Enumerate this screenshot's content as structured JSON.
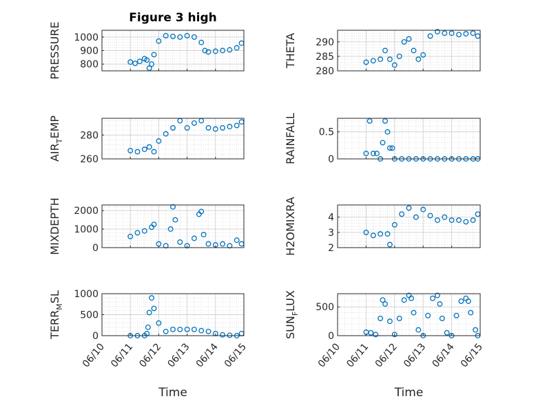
{
  "chart_data": [
    {
      "type": "scatter",
      "title": "Figure 3 high",
      "ylabel": "PRESSURE",
      "xlabel": "",
      "ylim": [
        750,
        1050
      ],
      "yticks": [
        800,
        900,
        1000
      ],
      "show_xticklabels": false,
      "x": [
        "06/11 00:00",
        "06/11 04:00",
        "06/11 08:00",
        "06/11 12:00",
        "06/11 14:00",
        "06/11 16:00",
        "06/11 18:00",
        "06/11 20:00",
        "06/12 00:00",
        "06/12 06:00",
        "06/12 12:00",
        "06/12 18:00",
        "06/13 00:00",
        "06/13 06:00",
        "06/13 12:00",
        "06/13 15:00",
        "06/13 18:00",
        "06/14 00:00",
        "06/14 06:00",
        "06/14 12:00",
        "06/14 18:00",
        "06/14 22:00"
      ],
      "y": [
        815,
        805,
        820,
        840,
        830,
        770,
        800,
        870,
        970,
        1010,
        1005,
        1000,
        1010,
        1000,
        960,
        900,
        890,
        895,
        900,
        905,
        920,
        955
      ]
    },
    {
      "type": "scatter",
      "title": "",
      "ylabel": "THETA",
      "xlabel": "",
      "ylim": [
        280,
        294
      ],
      "yticks": [
        280,
        285,
        290
      ],
      "show_xticklabels": false,
      "x": [
        "06/11 00:00",
        "06/11 06:00",
        "06/11 12:00",
        "06/11 16:00",
        "06/11 20:00",
        "06/12 00:00",
        "06/12 04:00",
        "06/12 08:00",
        "06/12 12:00",
        "06/12 16:00",
        "06/12 20:00",
        "06/13 00:00",
        "06/13 06:00",
        "06/13 12:00",
        "06/13 18:00",
        "06/14 00:00",
        "06/14 06:00",
        "06/14 12:00",
        "06/14 18:00",
        "06/14 22:00"
      ],
      "y": [
        283,
        283.5,
        284,
        287,
        284,
        282,
        285,
        290,
        291,
        287,
        284,
        285.5,
        292,
        293.5,
        293,
        293,
        292.5,
        292.8,
        293,
        292
      ]
    },
    {
      "type": "scatter",
      "title": "",
      "ylabel": "AIR_TEMP",
      "xlabel": "",
      "ylim": [
        260,
        294
      ],
      "yticks": [
        260,
        280
      ],
      "show_xticklabels": false,
      "x": [
        "06/11 00:00",
        "06/11 06:00",
        "06/11 12:00",
        "06/11 16:00",
        "06/11 20:00",
        "06/12 00:00",
        "06/12 06:00",
        "06/12 12:00",
        "06/12 18:00",
        "06/13 00:00",
        "06/13 06:00",
        "06/13 12:00",
        "06/13 18:00",
        "06/14 00:00",
        "06/14 06:00",
        "06/14 12:00",
        "06/14 18:00",
        "06/14 22:00"
      ],
      "y": [
        267,
        266,
        268,
        270,
        266,
        275,
        281,
        286,
        292,
        286,
        290,
        292,
        286,
        285,
        286,
        287,
        288,
        291
      ]
    },
    {
      "type": "scatter",
      "title": "",
      "ylabel": "RAINFALL",
      "xlabel": "",
      "ylim": [
        0,
        0.75
      ],
      "yticks": [
        0,
        0.5
      ],
      "show_xticklabels": false,
      "x": [
        "06/11 00:00",
        "06/11 03:00",
        "06/11 06:00",
        "06/11 09:00",
        "06/11 12:00",
        "06/11 14:00",
        "06/11 16:00",
        "06/11 18:00",
        "06/11 20:00",
        "06/11 22:00",
        "06/12 00:00",
        "06/12 06:00",
        "06/12 12:00",
        "06/12 18:00",
        "06/13 00:00",
        "06/13 06:00",
        "06/13 12:00",
        "06/13 18:00",
        "06/14 00:00",
        "06/14 06:00",
        "06/14 12:00",
        "06/14 18:00",
        "06/14 22:00"
      ],
      "y": [
        0.1,
        0.7,
        0.1,
        0.1,
        0,
        0.3,
        0.7,
        0.5,
        0.2,
        0.2,
        0,
        0,
        0,
        0,
        0,
        0,
        0,
        0,
        0,
        0,
        0,
        0,
        0
      ]
    },
    {
      "type": "scatter",
      "title": "",
      "ylabel": "MIXDEPTH",
      "xlabel": "",
      "ylim": [
        0,
        2300
      ],
      "yticks": [
        0,
        1000,
        2000
      ],
      "show_xticklabels": false,
      "x": [
        "06/11 00:00",
        "06/11 06:00",
        "06/11 12:00",
        "06/11 18:00",
        "06/11 20:00",
        "06/12 00:00",
        "06/12 06:00",
        "06/12 10:00",
        "06/12 12:00",
        "06/12 14:00",
        "06/12 18:00",
        "06/13 00:00",
        "06/13 06:00",
        "06/13 10:00",
        "06/13 12:00",
        "06/13 14:00",
        "06/13 18:00",
        "06/14 00:00",
        "06/14 06:00",
        "06/14 12:00",
        "06/14 18:00",
        "06/14 22:00"
      ],
      "y": [
        600,
        800,
        900,
        1100,
        1250,
        200,
        100,
        1000,
        2200,
        1500,
        300,
        100,
        500,
        1800,
        1950,
        700,
        200,
        150,
        200,
        100,
        400,
        200
      ]
    },
    {
      "type": "scatter",
      "title": "",
      "ylabel": "H2OMIXRA",
      "xlabel": "",
      "ylim": [
        2,
        4.8
      ],
      "yticks": [
        2,
        3,
        4
      ],
      "show_xticklabels": false,
      "x": [
        "06/11 00:00",
        "06/11 06:00",
        "06/11 12:00",
        "06/11 18:00",
        "06/11 20:00",
        "06/12 00:00",
        "06/12 06:00",
        "06/12 12:00",
        "06/12 18:00",
        "06/13 00:00",
        "06/13 06:00",
        "06/13 12:00",
        "06/13 18:00",
        "06/14 00:00",
        "06/14 06:00",
        "06/14 12:00",
        "06/14 18:00",
        "06/14 22:00"
      ],
      "y": [
        3,
        2.8,
        2.9,
        2.9,
        2.2,
        3.5,
        4.2,
        4.6,
        4.0,
        4.5,
        4.1,
        3.8,
        4.0,
        3.8,
        3.8,
        3.7,
        3.8,
        4.2
      ]
    },
    {
      "type": "scatter",
      "title": "",
      "ylabel": "TERR_MSL",
      "xlabel": "Time",
      "ylim": [
        0,
        1000
      ],
      "yticks": [
        0,
        500,
        1000
      ],
      "xlim": [
        "06/10",
        "06/15"
      ],
      "xticks": [
        "06/10",
        "06/11",
        "06/12",
        "06/13",
        "06/14",
        "06/15"
      ],
      "x": [
        "06/11 00:00",
        "06/11 06:00",
        "06/11 12:00",
        "06/11 14:00",
        "06/11 15:00",
        "06/11 16:00",
        "06/11 18:00",
        "06/11 20:00",
        "06/12 00:00",
        "06/12 06:00",
        "06/12 12:00",
        "06/12 18:00",
        "06/13 00:00",
        "06/13 06:00",
        "06/13 12:00",
        "06/13 18:00",
        "06/14 00:00",
        "06/14 06:00",
        "06/14 12:00",
        "06/14 18:00",
        "06/14 22:00"
      ],
      "y": [
        0,
        0,
        0,
        50,
        200,
        550,
        900,
        650,
        300,
        100,
        150,
        150,
        150,
        150,
        120,
        100,
        50,
        20,
        10,
        0,
        50
      ]
    },
    {
      "type": "scatter",
      "title": "",
      "ylabel": "SUN_FLUX",
      "xlabel": "Time",
      "ylim": [
        0,
        730
      ],
      "yticks": [
        0,
        500
      ],
      "xlim": [
        "06/10",
        "06/15"
      ],
      "xticks": [
        "06/10",
        "06/11",
        "06/12",
        "06/13",
        "06/14",
        "06/15"
      ],
      "x": [
        "06/11 00:00",
        "06/11 04:00",
        "06/11 08:00",
        "06/11 12:00",
        "06/11 14:00",
        "06/11 16:00",
        "06/11 20:00",
        "06/12 00:00",
        "06/12 04:00",
        "06/12 08:00",
        "06/12 12:00",
        "06/12 14:00",
        "06/12 16:00",
        "06/12 20:00",
        "06/13 00:00",
        "06/13 04:00",
        "06/13 08:00",
        "06/13 12:00",
        "06/13 14:00",
        "06/13 16:00",
        "06/13 20:00",
        "06/14 00:00",
        "06/14 04:00",
        "06/14 08:00",
        "06/14 12:00",
        "06/14 14:00",
        "06/14 16:00",
        "06/14 20:00",
        "06/14 22:00"
      ],
      "y": [
        60,
        50,
        20,
        300,
        620,
        550,
        250,
        20,
        300,
        620,
        700,
        650,
        400,
        100,
        0,
        350,
        650,
        700,
        550,
        300,
        50,
        0,
        350,
        600,
        650,
        600,
        400,
        100,
        0
      ]
    }
  ],
  "style": {
    "marker_color": "#0072BD",
    "axis_color": "#262626",
    "grid_color": "#d9d9d9"
  }
}
